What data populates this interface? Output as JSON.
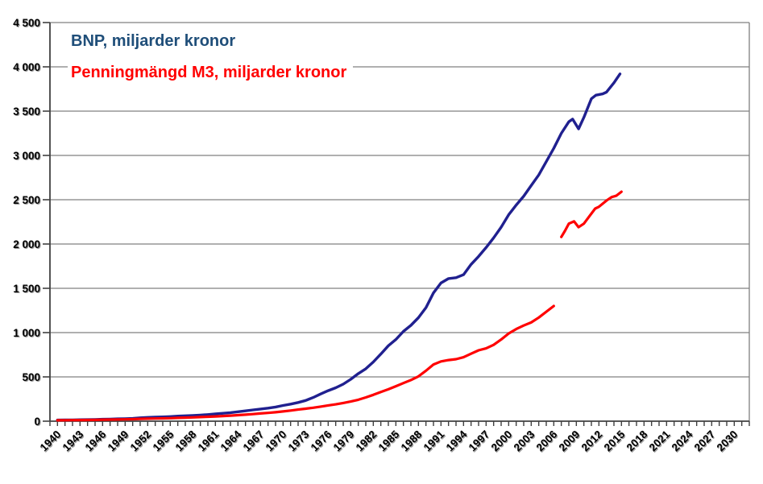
{
  "legend": {
    "items": [
      {
        "label": "BNP, miljarder kronor",
        "color": "#1f4e79"
      },
      {
        "label": "Penningmängd M3, miljarder kronor",
        "color": "#ff0000"
      }
    ]
  },
  "chart_data": {
    "type": "line",
    "title": "",
    "xlabel": "",
    "ylabel": "miljarder kronor",
    "colors": {
      "grid": "#808080",
      "axis": "#404040",
      "label": "#000000",
      "label_shadow": "#9a9a9a",
      "background": "#ffffff"
    },
    "y_axis": {
      "min": 0,
      "max": 4500,
      "step": 500,
      "tick_labels": [
        "0",
        "500",
        "1 000",
        "1 500",
        "2 000",
        "2 500",
        "3 000",
        "3 500",
        "4 000",
        "4 500"
      ]
    },
    "x_axis": {
      "start_year": 1940,
      "end_year": 2031,
      "minor_tick_every": 1,
      "label_years": [
        1940,
        1943,
        1946,
        1949,
        1952,
        1955,
        1958,
        1961,
        1964,
        1967,
        1970,
        1973,
        1976,
        1979,
        1982,
        1985,
        1988,
        1991,
        1994,
        1997,
        2000,
        2003,
        2006,
        2009,
        2012,
        2015,
        2018,
        2021,
        2024,
        2027,
        2030
      ]
    },
    "series": [
      {
        "id": "bnp",
        "name": "BNP, miljarder kronor",
        "color": "#20208f",
        "width": 3.4,
        "segments": [
          [
            [
              1940,
              13
            ],
            [
              1941,
              14
            ],
            [
              1942,
              15
            ],
            [
              1943,
              16
            ],
            [
              1944,
              17
            ],
            [
              1945,
              19
            ],
            [
              1946,
              22
            ],
            [
              1947,
              24
            ],
            [
              1948,
              26
            ],
            [
              1949,
              28
            ],
            [
              1950,
              31
            ],
            [
              1951,
              38
            ],
            [
              1952,
              43
            ],
            [
              1953,
              45
            ],
            [
              1954,
              48
            ],
            [
              1955,
              52
            ],
            [
              1956,
              57
            ],
            [
              1957,
              61
            ],
            [
              1958,
              65
            ],
            [
              1959,
              69
            ],
            [
              1960,
              75
            ],
            [
              1961,
              82
            ],
            [
              1962,
              89
            ],
            [
              1963,
              96
            ],
            [
              1964,
              106
            ],
            [
              1965,
              116
            ],
            [
              1966,
              127
            ],
            [
              1967,
              137
            ],
            [
              1968,
              147
            ],
            [
              1969,
              160
            ],
            [
              1970,
              177
            ],
            [
              1971,
              193
            ],
            [
              1972,
              211
            ],
            [
              1973,
              234
            ],
            [
              1974,
              267
            ],
            [
              1975,
              307
            ],
            [
              1976,
              345
            ],
            [
              1977,
              377
            ],
            [
              1978,
              418
            ],
            [
              1979,
              473
            ],
            [
              1980,
              537
            ],
            [
              1981,
              592
            ],
            [
              1982,
              668
            ],
            [
              1983,
              758
            ],
            [
              1984,
              852
            ],
            [
              1985,
              922
            ],
            [
              1986,
              1014
            ],
            [
              1987,
              1082
            ],
            [
              1988,
              1168
            ],
            [
              1989,
              1282
            ],
            [
              1990,
              1448
            ],
            [
              1991,
              1560
            ],
            [
              1992,
              1610
            ],
            [
              1993,
              1620
            ],
            [
              1994,
              1654
            ],
            [
              1995,
              1770
            ],
            [
              1996,
              1860
            ],
            [
              1997,
              1960
            ],
            [
              1998,
              2070
            ],
            [
              1999,
              2190
            ],
            [
              2000,
              2330
            ],
            [
              2001,
              2440
            ],
            [
              2002,
              2540
            ],
            [
              2003,
              2660
            ],
            [
              2004,
              2780
            ],
            [
              2005,
              2930
            ],
            [
              2006,
              3080
            ],
            [
              2007,
              3250
            ],
            [
              2008,
              3380
            ],
            [
              2008.5,
              3410
            ],
            [
              2009.3,
              3300
            ],
            [
              2010,
              3430
            ],
            [
              2011,
              3640
            ],
            [
              2011.6,
              3680
            ],
            [
              2012.5,
              3695
            ],
            [
              2013,
              3715
            ],
            [
              2014,
              3820
            ],
            [
              2014.8,
              3920
            ]
          ]
        ]
      },
      {
        "id": "m3",
        "name": "Penningmängd M3, miljarder kronor",
        "color": "#ff0000",
        "width": 3.2,
        "segments": [
          [
            [
              1940,
              10
            ],
            [
              1941,
              11
            ],
            [
              1942,
              12
            ],
            [
              1943,
              13
            ],
            [
              1944,
              14
            ],
            [
              1945,
              15
            ],
            [
              1946,
              17
            ],
            [
              1947,
              18
            ],
            [
              1948,
              19
            ],
            [
              1949,
              21
            ],
            [
              1950,
              23
            ],
            [
              1951,
              26
            ],
            [
              1952,
              28
            ],
            [
              1953,
              30
            ],
            [
              1954,
              32
            ],
            [
              1955,
              34
            ],
            [
              1956,
              37
            ],
            [
              1957,
              40
            ],
            [
              1958,
              43
            ],
            [
              1959,
              46
            ],
            [
              1960,
              50
            ],
            [
              1961,
              54
            ],
            [
              1962,
              58
            ],
            [
              1963,
              63
            ],
            [
              1964,
              68
            ],
            [
              1965,
              74
            ],
            [
              1966,
              80
            ],
            [
              1967,
              87
            ],
            [
              1968,
              94
            ],
            [
              1969,
              101
            ],
            [
              1970,
              110
            ],
            [
              1971,
              120
            ],
            [
              1972,
              131
            ],
            [
              1973,
              141
            ],
            [
              1974,
              152
            ],
            [
              1975,
              165
            ],
            [
              1976,
              178
            ],
            [
              1977,
              190
            ],
            [
              1978,
              205
            ],
            [
              1979,
              222
            ],
            [
              1980,
              242
            ],
            [
              1981,
              268
            ],
            [
              1982,
              297
            ],
            [
              1983,
              330
            ],
            [
              1984,
              360
            ],
            [
              1985,
              395
            ],
            [
              1986,
              430
            ],
            [
              1987,
              465
            ],
            [
              1988,
              505
            ],
            [
              1989,
              570
            ],
            [
              1990,
              640
            ],
            [
              1991,
              675
            ],
            [
              1992,
              690
            ],
            [
              1993,
              700
            ],
            [
              1994,
              722
            ],
            [
              1995,
              762
            ],
            [
              1996,
              800
            ],
            [
              1997,
              822
            ],
            [
              1998,
              862
            ],
            [
              1999,
              922
            ],
            [
              2000,
              990
            ],
            [
              2001,
              1040
            ],
            [
              2002,
              1080
            ],
            [
              2003,
              1115
            ],
            [
              2004,
              1170
            ],
            [
              2005,
              1235
            ],
            [
              2006,
              1300
            ]
          ],
          [
            [
              2007,
              2080
            ],
            [
              2007.5,
              2150
            ],
            [
              2008,
              2230
            ],
            [
              2008.7,
              2255
            ],
            [
              2009.3,
              2190
            ],
            [
              2010,
              2230
            ],
            [
              2010.7,
              2310
            ],
            [
              2011.5,
              2400
            ],
            [
              2012,
              2420
            ],
            [
              2013,
              2490
            ],
            [
              2013.7,
              2530
            ],
            [
              2014.3,
              2545
            ],
            [
              2015,
              2590
            ]
          ]
        ]
      }
    ],
    "layout_hints": {
      "grid": "horizontal-only",
      "legend_position": "top-left-inside",
      "x_labels_rotated_degrees": -45
    }
  }
}
